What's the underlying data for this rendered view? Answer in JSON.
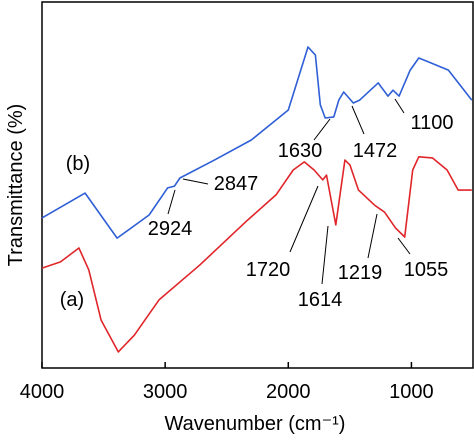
{
  "chart_data": {
    "type": "line",
    "xlabel": "Wavenumber (cm⁻¹)",
    "ylabel": "Transmittance (%)",
    "xlim": [
      4000,
      500
    ],
    "ylim": [
      0,
      100
    ],
    "xticks": [
      4000,
      3000,
      2000,
      1000
    ],
    "series": [
      {
        "name": "(b)",
        "color": "#2f5fd6",
        "x": [
          4000,
          3650,
          3390,
          3130,
          2980,
          2924,
          2880,
          2600,
          2300,
          2000,
          1840,
          1780,
          1740,
          1700,
          1630,
          1590,
          1550,
          1472,
          1420,
          1270,
          1190,
          1150,
          1100,
          1010,
          940,
          860,
          700,
          510
        ],
        "values": [
          41.0,
          47.8,
          35.5,
          41.8,
          49.2,
          49.7,
          51.9,
          56.8,
          62.3,
          70.5,
          87.7,
          85.5,
          71.9,
          68.3,
          68.6,
          73.2,
          75.4,
          72.4,
          73.2,
          77.9,
          74.3,
          75.9,
          74.3,
          81.4,
          84.7,
          83.6,
          81.4,
          73.2
        ]
      },
      {
        "name": "(a)",
        "color": "#e0262a",
        "x": [
          4000,
          3850,
          3700,
          3620,
          3520,
          3380,
          3250,
          3050,
          2720,
          2330,
          2100,
          1960,
          1870,
          1790,
          1720,
          1690,
          1614,
          1580,
          1540,
          1500,
          1430,
          1300,
          1219,
          1130,
          1055,
          990,
          940,
          830,
          710,
          620,
          510
        ],
        "values": [
          27.3,
          29.0,
          32.8,
          26.8,
          13.1,
          4.4,
          9.0,
          18.6,
          28.1,
          40.4,
          47.3,
          54.1,
          56.3,
          54.1,
          51.4,
          52.7,
          39.1,
          47.3,
          56.8,
          55.5,
          48.6,
          44.5,
          42.6,
          38.3,
          35.8,
          54.1,
          57.7,
          57.4,
          54.1,
          48.6,
          48.6
        ]
      }
    ],
    "annotations": [
      "2924",
      "2847",
      "1630",
      "1472",
      "1100",
      "1720",
      "1614",
      "1219",
      "1055"
    ]
  }
}
